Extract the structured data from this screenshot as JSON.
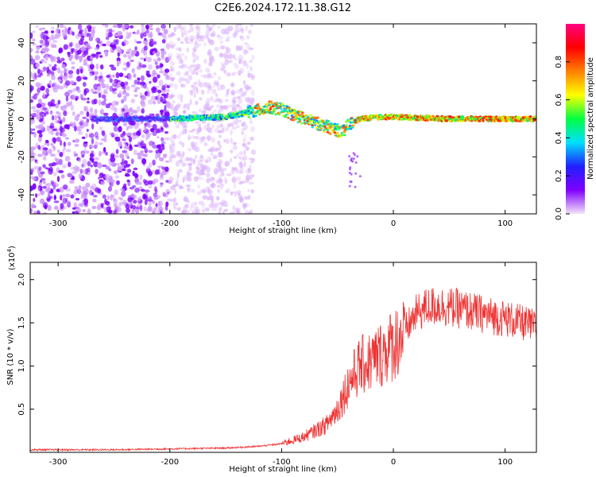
{
  "title": "C2E6.2024.172.11.38.G12",
  "chart_data": [
    {
      "type": "heatmap",
      "xlabel": "Height of straight line (km)",
      "ylabel": "Frequency (Hz)",
      "xlim": [
        -325,
        128
      ],
      "ylim": [
        -50,
        50
      ],
      "x_ticks": [
        -300,
        -200,
        -100,
        0,
        100
      ],
      "x_tick_labels": [
        "-300",
        "-200",
        "-100",
        "0",
        "100"
      ],
      "y_ticks": [
        -40,
        -20,
        0,
        20,
        40
      ],
      "y_tick_labels": [
        "-40",
        "-20",
        "0",
        "20",
        "40"
      ],
      "colorbar": {
        "label": "Normalized spectral amplitude",
        "range": [
          0,
          1
        ],
        "ticks": [
          0.0,
          0.2,
          0.4,
          0.6,
          0.8
        ],
        "tick_labels": [
          "0.0",
          "0.2",
          "0.4",
          "0.6",
          "0.8"
        ],
        "colors": [
          "#f4e4f8",
          "#8000ff",
          "#2020ff",
          "#00e0ff",
          "#00ff40",
          "#ffff00",
          "#ff8000",
          "#ff0000",
          "#ff0080"
        ]
      },
      "ridge": {
        "x": [
          -325,
          -250,
          -200,
          -150,
          -125,
          -110,
          -100,
          -80,
          -60,
          -45,
          -40,
          -30,
          -10,
          0,
          50,
          100,
          128
        ],
        "y": [
          0,
          0,
          0,
          1,
          4,
          6,
          5,
          0,
          -4,
          -7,
          -3,
          0,
          1,
          1,
          0,
          0,
          0
        ]
      },
      "noise_regions": [
        {
          "x": [
            -325,
            -200
          ],
          "level": "strong"
        },
        {
          "x": [
            -200,
            -125
          ],
          "level": "faint"
        }
      ],
      "grid": false
    },
    {
      "type": "line",
      "xlabel": "Height of straight line (km)",
      "ylabel": "SNR (10 * v/v)",
      "y_multiplier_label": "(x10",
      "y_multiplier_exp": "4",
      "xlim": [
        -325,
        128
      ],
      "ylim": [
        0,
        2.2
      ],
      "x_ticks": [
        -300,
        -200,
        -100,
        0,
        100
      ],
      "x_tick_labels": [
        "-300",
        "-200",
        "-100",
        "0",
        "100"
      ],
      "y_ticks": [
        0.5,
        1.0,
        1.5,
        2.0
      ],
      "y_tick_labels": [
        "0.5",
        "1.0",
        "1.5",
        "2.0"
      ],
      "line_color": "#ee3333",
      "series": [
        {
          "x": [
            -325,
            -300,
            -250,
            -200,
            -150,
            -120,
            -100,
            -80,
            -60,
            -50,
            -40,
            -30,
            -20,
            -10,
            0,
            10,
            20,
            30,
            40,
            60,
            80,
            100,
            115,
            128
          ],
          "y": [
            0.03,
            0.03,
            0.03,
            0.04,
            0.05,
            0.07,
            0.1,
            0.18,
            0.32,
            0.5,
            0.8,
            1.0,
            1.05,
            1.15,
            1.25,
            1.4,
            1.6,
            1.68,
            1.7,
            1.66,
            1.6,
            1.55,
            1.5,
            1.45
          ]
        }
      ],
      "grid": false
    }
  ]
}
